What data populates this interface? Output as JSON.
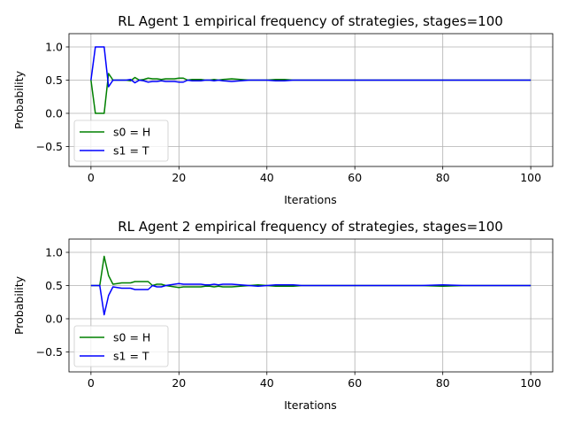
{
  "chart_data": [
    {
      "type": "line",
      "title": "RL Agent 1 empirical frequency of strategies, stages=100",
      "xlabel": "Iterations",
      "ylabel": "Probability",
      "xlim": [
        -5,
        105
      ],
      "ylim": [
        -0.8,
        1.2
      ],
      "xticks": [
        0,
        20,
        40,
        60,
        80,
        100
      ],
      "xtick_labels": [
        "0",
        "20",
        "40",
        "60",
        "80",
        "100"
      ],
      "yticks": [
        -0.5,
        0.0,
        0.5,
        1.0
      ],
      "ytick_labels": [
        "−0.5",
        "0.0",
        "0.5",
        "1.0"
      ],
      "grid": true,
      "legend": "lower-left",
      "series": [
        {
          "name": "s0 = H",
          "color": "#008000",
          "x": [
            0,
            1,
            2,
            3,
            4,
            5,
            6,
            7,
            8,
            9,
            10,
            11,
            12,
            13,
            14,
            15,
            16,
            17,
            18,
            19,
            20,
            21,
            22,
            23,
            24,
            25,
            26,
            27,
            28,
            29,
            30,
            32,
            34,
            36,
            38,
            40,
            42,
            44,
            46,
            48,
            50,
            55,
            60,
            65,
            70,
            75,
            80,
            85,
            90,
            95,
            100
          ],
          "y": [
            0.5,
            0.0,
            0.0,
            0.0,
            0.6,
            0.5,
            0.5,
            0.5,
            0.5,
            0.49,
            0.54,
            0.5,
            0.51,
            0.53,
            0.52,
            0.52,
            0.51,
            0.52,
            0.52,
            0.52,
            0.53,
            0.53,
            0.5,
            0.51,
            0.51,
            0.51,
            0.5,
            0.5,
            0.51,
            0.5,
            0.51,
            0.52,
            0.51,
            0.5,
            0.5,
            0.5,
            0.51,
            0.51,
            0.5,
            0.5,
            0.5,
            0.5,
            0.5,
            0.5,
            0.5,
            0.5,
            0.5,
            0.5,
            0.5,
            0.5,
            0.5
          ]
        },
        {
          "name": "s1 = T",
          "color": "#0000ff",
          "x": [
            0,
            1,
            2,
            3,
            4,
            5,
            6,
            7,
            8,
            9,
            10,
            11,
            12,
            13,
            14,
            15,
            16,
            17,
            18,
            19,
            20,
            21,
            22,
            23,
            24,
            25,
            26,
            27,
            28,
            29,
            30,
            32,
            34,
            36,
            38,
            40,
            42,
            44,
            46,
            48,
            50,
            55,
            60,
            65,
            70,
            75,
            80,
            85,
            90,
            95,
            100
          ],
          "y": [
            0.5,
            1.0,
            1.0,
            1.0,
            0.4,
            0.5,
            0.5,
            0.5,
            0.5,
            0.51,
            0.46,
            0.5,
            0.49,
            0.47,
            0.48,
            0.48,
            0.49,
            0.48,
            0.48,
            0.48,
            0.47,
            0.47,
            0.5,
            0.49,
            0.49,
            0.49,
            0.5,
            0.5,
            0.49,
            0.5,
            0.49,
            0.48,
            0.49,
            0.5,
            0.5,
            0.5,
            0.49,
            0.49,
            0.5,
            0.5,
            0.5,
            0.5,
            0.5,
            0.5,
            0.5,
            0.5,
            0.5,
            0.5,
            0.5,
            0.5,
            0.5
          ]
        }
      ]
    },
    {
      "type": "line",
      "title": "RL Agent 2 empirical frequency of strategies, stages=100",
      "xlabel": "Iterations",
      "ylabel": "Probability",
      "xlim": [
        -5,
        105
      ],
      "ylim": [
        -0.8,
        1.2
      ],
      "xticks": [
        0,
        20,
        40,
        60,
        80,
        100
      ],
      "xtick_labels": [
        "0",
        "20",
        "40",
        "60",
        "80",
        "100"
      ],
      "yticks": [
        -0.5,
        0.0,
        0.5,
        1.0
      ],
      "ytick_labels": [
        "−0.5",
        "0.0",
        "0.5",
        "1.0"
      ],
      "grid": true,
      "legend": "lower-left",
      "series": [
        {
          "name": "s0 = H",
          "color": "#008000",
          "x": [
            0,
            1,
            2,
            3,
            4,
            5,
            6,
            7,
            8,
            9,
            10,
            11,
            12,
            13,
            14,
            15,
            16,
            17,
            18,
            19,
            20,
            21,
            22,
            23,
            24,
            25,
            26,
            27,
            28,
            29,
            30,
            32,
            34,
            36,
            38,
            40,
            42,
            44,
            46,
            48,
            50,
            55,
            60,
            65,
            70,
            75,
            80,
            85,
            90,
            95,
            100
          ],
          "y": [
            0.5,
            0.5,
            0.5,
            0.94,
            0.65,
            0.52,
            0.53,
            0.54,
            0.54,
            0.54,
            0.56,
            0.56,
            0.56,
            0.56,
            0.5,
            0.52,
            0.52,
            0.5,
            0.49,
            0.48,
            0.47,
            0.48,
            0.48,
            0.48,
            0.48,
            0.48,
            0.49,
            0.49,
            0.48,
            0.49,
            0.48,
            0.48,
            0.49,
            0.5,
            0.51,
            0.5,
            0.49,
            0.49,
            0.49,
            0.5,
            0.5,
            0.5,
            0.5,
            0.5,
            0.5,
            0.5,
            0.49,
            0.5,
            0.5,
            0.5,
            0.5
          ]
        },
        {
          "name": "s1 = T",
          "color": "#0000ff",
          "x": [
            0,
            1,
            2,
            3,
            4,
            5,
            6,
            7,
            8,
            9,
            10,
            11,
            12,
            13,
            14,
            15,
            16,
            17,
            18,
            19,
            20,
            21,
            22,
            23,
            24,
            25,
            26,
            27,
            28,
            29,
            30,
            32,
            34,
            36,
            38,
            40,
            42,
            44,
            46,
            48,
            50,
            55,
            60,
            65,
            70,
            75,
            80,
            85,
            90,
            95,
            100
          ],
          "y": [
            0.5,
            0.5,
            0.5,
            0.06,
            0.35,
            0.48,
            0.47,
            0.46,
            0.46,
            0.46,
            0.44,
            0.44,
            0.44,
            0.44,
            0.5,
            0.48,
            0.48,
            0.5,
            0.51,
            0.52,
            0.53,
            0.52,
            0.52,
            0.52,
            0.52,
            0.52,
            0.51,
            0.51,
            0.52,
            0.51,
            0.52,
            0.52,
            0.51,
            0.5,
            0.49,
            0.5,
            0.51,
            0.51,
            0.51,
            0.5,
            0.5,
            0.5,
            0.5,
            0.5,
            0.5,
            0.5,
            0.51,
            0.5,
            0.5,
            0.5,
            0.5
          ]
        }
      ]
    }
  ]
}
